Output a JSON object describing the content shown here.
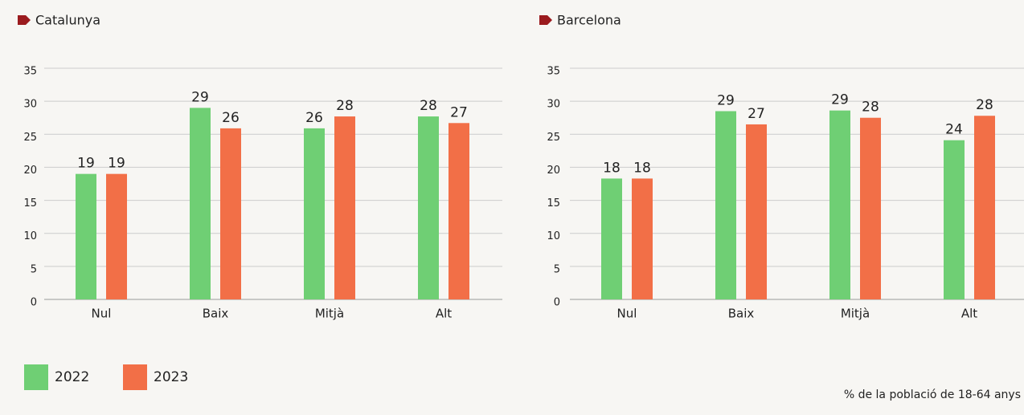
{
  "chart_data": [
    {
      "type": "bar",
      "title": "Catalunya",
      "categories": [
        "Nul",
        "Baix",
        "Mitjà",
        "Alt"
      ],
      "series": [
        {
          "name": "2022",
          "color": "#6fcf74",
          "values": [
            19,
            29,
            25.9,
            27.7
          ],
          "value_labels": [
            "19",
            "29",
            "26",
            "28"
          ]
        },
        {
          "name": "2023",
          "color": "#f26f47",
          "values": [
            19,
            25.9,
            27.7,
            26.7
          ],
          "value_labels": [
            "19",
            "26",
            "28",
            "27"
          ]
        }
      ],
      "ylim": [
        0,
        35
      ],
      "yticks": [
        0,
        5,
        10,
        15,
        20,
        25,
        30,
        35
      ],
      "grid": true
    },
    {
      "type": "bar",
      "title": "Barcelona",
      "categories": [
        "Nul",
        "Baix",
        "Mitjà",
        "Alt"
      ],
      "series": [
        {
          "name": "2022",
          "color": "#6fcf74",
          "values": [
            18.3,
            28.5,
            28.6,
            24.1
          ],
          "value_labels": [
            "18",
            "29",
            "29",
            "24"
          ]
        },
        {
          "name": "2023",
          "color": "#f26f47",
          "values": [
            18.3,
            26.5,
            27.5,
            27.8
          ],
          "value_labels": [
            "18",
            "27",
            "28",
            "28"
          ]
        }
      ],
      "ylim": [
        0,
        35
      ],
      "yticks": [
        0,
        5,
        10,
        15,
        20,
        25,
        30,
        35
      ],
      "grid": true
    }
  ],
  "note": "% de la població de 18-64 anys"
}
